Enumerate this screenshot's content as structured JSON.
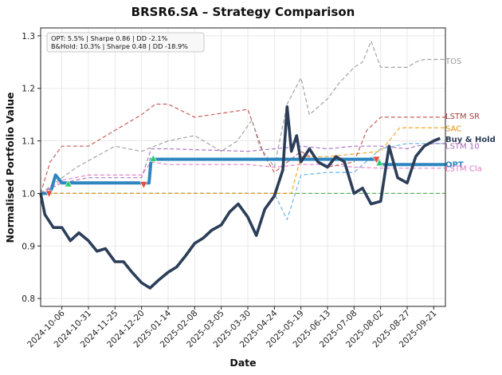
{
  "chart_data": {
    "type": "line",
    "title": "BRSR6.SA – Strategy Comparison",
    "xlabel": "Date",
    "ylabel": "Normalised Portfolio Value",
    "ylim": [
      0.785,
      1.315
    ],
    "yticks": [
      0.8,
      0.9,
      1.0,
      1.1,
      1.2,
      1.3
    ],
    "ytick_labels": [
      "0.8",
      "0.9",
      "1.0",
      "1.1",
      "1.2",
      "1.3"
    ],
    "x_range": [
      "2024-09-16",
      "2025-10-02"
    ],
    "xticks": [
      "2024-10-06",
      "2024-10-31",
      "2024-11-25",
      "2024-12-20",
      "2025-01-14",
      "2025-02-08",
      "2025-03-05",
      "2025-03-30",
      "2025-04-24",
      "2025-05-19",
      "2025-06-13",
      "2025-07-08",
      "2025-08-02",
      "2025-08-27",
      "2025-09-21"
    ],
    "grid": true,
    "stats_box": {
      "line1": "OPT: 5.5% | Sharpe 0.86 | DD -2.1%",
      "line2": "B&Hold: 10.3% | Sharpe 0.48 | DD -18.9%"
    },
    "series": [
      {
        "name": "Buy & Hold",
        "color": "#2c3e58",
        "style": "solid-thick",
        "x": [
          "2024-09-16",
          "2024-09-20",
          "2024-09-28",
          "2024-10-06",
          "2024-10-14",
          "2024-10-22",
          "2024-10-31",
          "2024-11-08",
          "2024-11-16",
          "2024-11-25",
          "2024-12-03",
          "2024-12-11",
          "2024-12-20",
          "2024-12-28",
          "2025-01-05",
          "2025-01-14",
          "2025-01-22",
          "2025-01-30",
          "2025-02-08",
          "2025-02-16",
          "2025-02-24",
          "2025-03-05",
          "2025-03-13",
          "2025-03-21",
          "2025-03-30",
          "2025-04-07",
          "2025-04-15",
          "2025-04-24",
          "2025-05-02",
          "2025-05-06",
          "2025-05-10",
          "2025-05-15",
          "2025-05-19",
          "2025-05-27",
          "2025-06-04",
          "2025-06-13",
          "2025-06-21",
          "2025-06-29",
          "2025-07-08",
          "2025-07-16",
          "2025-07-24",
          "2025-08-02",
          "2025-08-10",
          "2025-08-18",
          "2025-08-27",
          "2025-09-04",
          "2025-09-12",
          "2025-09-21",
          "2025-09-27"
        ],
        "values": [
          1.0,
          0.96,
          0.935,
          0.935,
          0.91,
          0.925,
          0.91,
          0.89,
          0.895,
          0.87,
          0.87,
          0.85,
          0.83,
          0.82,
          0.835,
          0.85,
          0.86,
          0.88,
          0.905,
          0.915,
          0.93,
          0.94,
          0.965,
          0.98,
          0.955,
          0.92,
          0.97,
          0.995,
          1.045,
          1.165,
          1.08,
          1.11,
          1.06,
          1.085,
          1.06,
          1.05,
          1.07,
          1.06,
          1.0,
          1.01,
          0.98,
          0.985,
          1.09,
          1.03,
          1.02,
          1.07,
          1.09,
          1.1,
          1.105
        ]
      },
      {
        "name": "OPT",
        "color": "#2e86c1",
        "style": "solid-thick",
        "x": [
          "2024-09-16",
          "2024-09-25",
          "2024-09-30",
          "2024-10-06",
          "2024-10-12",
          "2024-10-20",
          "2024-12-27",
          "2024-12-29",
          "2025-01-02",
          "2025-01-14",
          "2025-07-30",
          "2025-08-02",
          "2025-10-02"
        ],
        "values": [
          1.0,
          1.0,
          1.035,
          1.02,
          1.02,
          1.02,
          1.02,
          1.065,
          1.065,
          1.065,
          1.065,
          1.055,
          1.055
        ]
      },
      {
        "name": "TOS",
        "color": "#999999",
        "style": "dashed",
        "x": [
          "2024-09-16",
          "2024-10-20",
          "2024-11-25",
          "2024-12-20",
          "2025-01-14",
          "2025-02-08",
          "2025-03-05",
          "2025-03-20",
          "2025-04-03",
          "2025-04-10",
          "2025-04-24",
          "2025-05-06",
          "2025-05-19",
          "2025-05-27",
          "2025-06-13",
          "2025-06-24",
          "2025-07-08",
          "2025-07-16",
          "2025-07-24",
          "2025-08-02",
          "2025-08-27",
          "2025-09-04",
          "2025-09-12",
          "2025-10-02"
        ],
        "values": [
          1.0,
          1.05,
          1.09,
          1.08,
          1.1,
          1.11,
          1.08,
          1.1,
          1.14,
          1.09,
          1.05,
          1.17,
          1.22,
          1.15,
          1.18,
          1.21,
          1.24,
          1.25,
          1.29,
          1.24,
          1.24,
          1.25,
          1.255,
          1.255
        ]
      },
      {
        "name": "LSTM SR",
        "color": "#c0504d",
        "style": "dashed",
        "x": [
          "2024-09-16",
          "2024-09-25",
          "2024-10-06",
          "2024-10-31",
          "2024-11-25",
          "2024-12-20",
          "2025-01-02",
          "2025-01-14",
          "2025-02-08",
          "2025-03-30",
          "2025-04-15",
          "2025-04-24",
          "2025-05-19",
          "2025-06-13",
          "2025-07-08",
          "2025-07-20",
          "2025-08-02",
          "2025-10-02"
        ],
        "values": [
          1.0,
          1.06,
          1.09,
          1.09,
          1.12,
          1.15,
          1.17,
          1.17,
          1.145,
          1.16,
          1.07,
          1.04,
          1.08,
          1.05,
          1.06,
          1.12,
          1.145,
          1.145
        ]
      },
      {
        "name": "SAC",
        "color": "#f39c12",
        "style": "dashed",
        "x": [
          "2024-09-16",
          "2025-05-10",
          "2025-05-19",
          "2025-06-13",
          "2025-07-08",
          "2025-08-02",
          "2025-08-20",
          "2025-09-04",
          "2025-10-02"
        ],
        "values": [
          1.0,
          1.0,
          1.07,
          1.07,
          1.075,
          1.08,
          1.125,
          1.125,
          1.125
        ]
      },
      {
        "name": "LSTM 10",
        "color": "#a569bd",
        "style": "dashed",
        "x": [
          "2024-09-16",
          "2024-10-06",
          "2024-10-31",
          "2024-12-20",
          "2024-12-29",
          "2025-01-14",
          "2025-03-30",
          "2025-04-24",
          "2025-05-19",
          "2025-06-13",
          "2025-07-08",
          "2025-08-02",
          "2025-08-27",
          "2025-09-04",
          "2025-09-21",
          "2025-10-02"
        ],
        "values": [
          1.0,
          1.02,
          1.03,
          1.03,
          1.085,
          1.085,
          1.08,
          1.085,
          1.09,
          1.085,
          1.09,
          1.09,
          1.085,
          1.09,
          1.095,
          1.095
        ]
      },
      {
        "name": "LSTM Cla",
        "color": "#e377c2",
        "style": "dashed",
        "x": [
          "2024-09-16",
          "2024-10-06",
          "2024-10-31",
          "2024-12-20",
          "2024-12-29",
          "2025-01-14",
          "2025-03-30",
          "2025-04-24",
          "2025-05-19",
          "2025-06-13",
          "2025-07-08",
          "2025-08-02",
          "2025-10-02"
        ],
        "values": [
          1.0,
          1.025,
          1.035,
          1.035,
          1.06,
          1.055,
          1.055,
          1.05,
          1.055,
          1.055,
          1.05,
          1.048,
          1.048
        ]
      },
      {
        "name": "",
        "color": "#5dade2",
        "style": "dashed",
        "x": [
          "2024-09-16",
          "2025-04-24",
          "2025-05-06",
          "2025-05-19",
          "2025-06-13",
          "2025-07-08",
          "2025-08-02",
          "2025-08-27",
          "2025-10-02"
        ],
        "values": [
          1.0,
          1.0,
          0.95,
          1.035,
          1.04,
          1.04,
          1.085,
          1.095,
          1.095
        ]
      },
      {
        "name": "",
        "color": "#4caf50",
        "style": "dashed",
        "x": [
          "2024-09-16",
          "2025-10-02"
        ],
        "values": [
          1.0,
          1.0
        ]
      },
      {
        "name": "",
        "color": "#b7b000",
        "style": "dashed",
        "x": [
          "2024-09-16",
          "2025-04-24"
        ],
        "values": [
          1.0,
          1.0
        ]
      }
    ],
    "end_labels": [
      {
        "text": "TOS",
        "color": "#999999",
        "y": 1.252,
        "bold": false
      },
      {
        "text": "LSTM SR",
        "color": "#a0443f",
        "y": 1.147,
        "bold": false
      },
      {
        "text": "SAC",
        "color": "#e08e0b",
        "y": 1.124,
        "bold": false
      },
      {
        "text": "Buy & Hold",
        "color": "#2c3e58",
        "y": 1.103,
        "bold": true
      },
      {
        "text": "LSTM 10",
        "color": "#a569bd",
        "y": 1.09,
        "bold": false
      },
      {
        "text": "OPT",
        "color": "#2e86c1",
        "y": 1.055,
        "bold": true
      },
      {
        "text": "LSTM Cla",
        "color": "#e377c2",
        "y": 1.048,
        "bold": false
      }
    ],
    "markers": [
      {
        "type": "sell",
        "date": "2024-09-24",
        "y": 1.0,
        "color": "#e74c3c"
      },
      {
        "type": "buy",
        "date": "2024-10-12",
        "y": 1.018,
        "color": "#2ecc71"
      },
      {
        "type": "sell",
        "date": "2024-12-22",
        "y": 1.017,
        "color": "#e74c3c"
      },
      {
        "type": "buy",
        "date": "2024-12-31",
        "y": 1.066,
        "color": "#2ecc71"
      },
      {
        "type": "sell",
        "date": "2025-07-29",
        "y": 1.065,
        "color": "#e74c3c"
      },
      {
        "type": "buy",
        "date": "2025-08-01",
        "y": 1.058,
        "color": "#2ecc71"
      }
    ]
  }
}
